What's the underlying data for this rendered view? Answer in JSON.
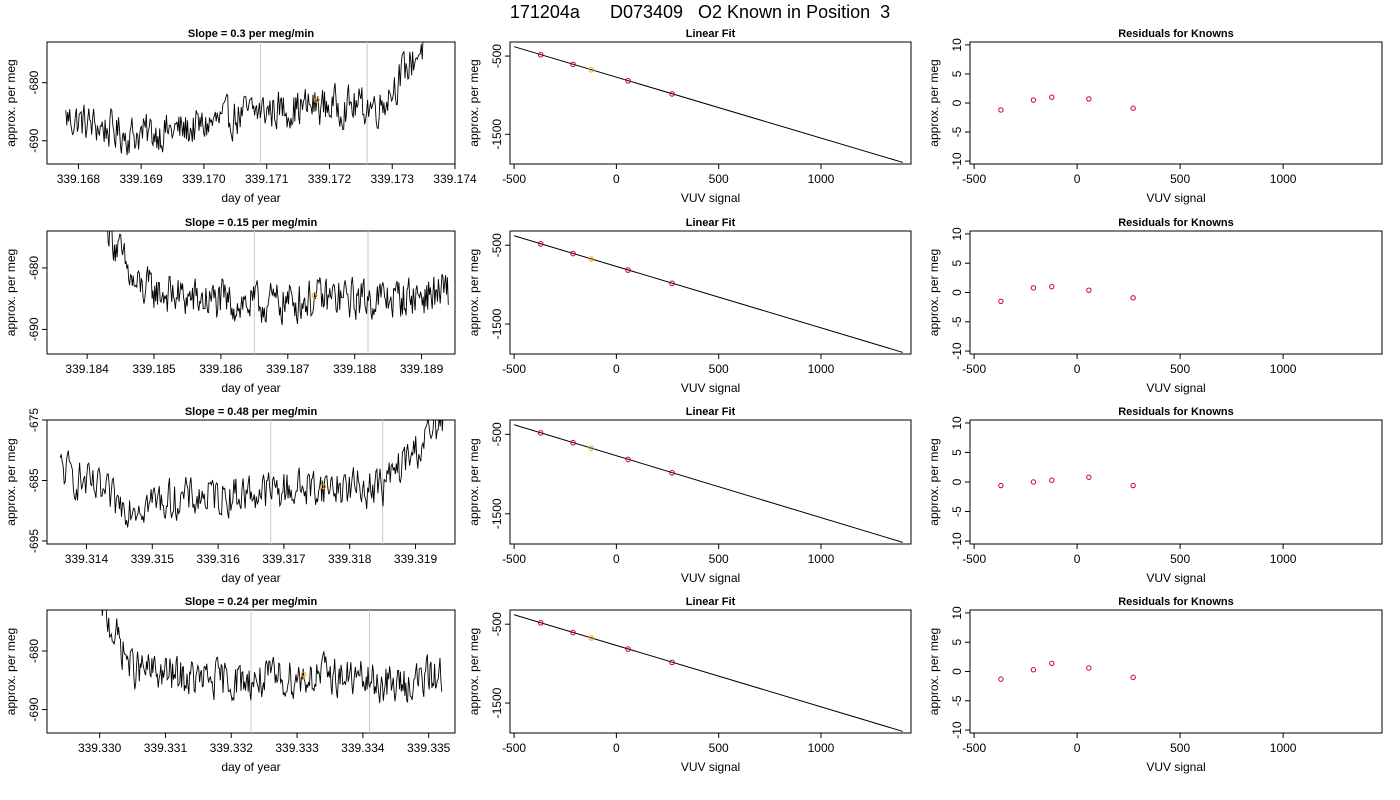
{
  "page": {
    "title": "171204a      D073409   O2 Known in Position  3"
  },
  "chart_data": [
    {
      "type": "line",
      "panel": "timeseries",
      "title": "Slope =  0.3  per meg/min",
      "xlabel": "day of year",
      "ylabel": "approx. per meg",
      "xlim": [
        339.1675,
        339.174
      ],
      "ylim": [
        -694,
        -673
      ],
      "xticks": [
        "339.168",
        "339.169",
        "339.170",
        "339.171",
        "339.172",
        "339.173",
        "339.174"
      ],
      "yticks": [
        "-680",
        "-690"
      ],
      "vlines": [
        339.1709,
        339.1726
      ],
      "highlight": {
        "x": 339.1718,
        "y": -683
      },
      "series": {
        "x": [
          339.1678,
          339.1688,
          339.1698,
          339.1708,
          339.1718,
          339.1728,
          339.1736
        ],
        "y": [
          -686,
          -689,
          -688,
          -685,
          -684,
          -684,
          -672
        ]
      }
    },
    {
      "type": "line",
      "panel": "timeseries",
      "title": "Slope =  0.15  per meg/min",
      "xlabel": "day of year",
      "ylabel": "approx. per meg",
      "xlim": [
        339.1834,
        339.1895
      ],
      "ylim": [
        -694,
        -674
      ],
      "xticks": [
        "339.184",
        "339.185",
        "339.186",
        "339.187",
        "339.188",
        "339.189"
      ],
      "yticks": [
        "-680",
        "-690"
      ],
      "vlines": [
        339.1865,
        339.1882
      ],
      "highlight": {
        "x": 339.1874,
        "y": -684.5
      },
      "series": {
        "x": [
          339.1843,
          339.1847,
          339.1855,
          339.1865,
          339.1875,
          339.1885,
          339.1894
        ],
        "y": [
          -673,
          -683,
          -685,
          -686,
          -685,
          -685,
          -684
        ]
      }
    },
    {
      "type": "line",
      "panel": "timeseries",
      "title": "Slope =  0.48  per meg/min",
      "xlabel": "day of year",
      "ylabel": "approx. per meg",
      "xlim": [
        339.3134,
        339.3196
      ],
      "ylim": [
        -695.5,
        -675
      ],
      "xticks": [
        "339.314",
        "339.315",
        "339.316",
        "339.317",
        "339.318",
        "339.319"
      ],
      "yticks": [
        "-675",
        "-685",
        "-695"
      ],
      "vlines": [
        339.3168,
        339.3185
      ],
      "highlight": {
        "x": 339.3176,
        "y": -686
      },
      "series": {
        "x": [
          339.3136,
          339.3145,
          339.3155,
          339.3165,
          339.3175,
          339.3185,
          339.3195
        ],
        "y": [
          -683,
          -689,
          -688,
          -687,
          -686,
          -686,
          -674
        ]
      }
    },
    {
      "type": "line",
      "panel": "timeseries",
      "title": "Slope =  0.24  per meg/min",
      "xlabel": "day of year",
      "ylabel": "approx. per meg",
      "xlim": [
        339.3292,
        339.3354
      ],
      "ylim": [
        -694,
        -673
      ],
      "xticks": [
        "339.330",
        "339.331",
        "339.332",
        "339.333",
        "339.334",
        "339.335"
      ],
      "yticks": [
        "-680",
        "-690"
      ],
      "vlines": [
        339.3323,
        339.3341
      ],
      "highlight": {
        "x": 339.3331,
        "y": -684
      },
      "series": {
        "x": [
          339.33,
          339.3305,
          339.3315,
          339.3325,
          339.3335,
          339.3345,
          339.3352
        ],
        "y": [
          -672,
          -683,
          -685,
          -685,
          -684,
          -686,
          -684
        ]
      }
    },
    {
      "type": "scatter",
      "panel": "fit",
      "title": "Linear Fit",
      "xlabel": "VUV signal",
      "ylabel": "approx. per meg",
      "xlim": [
        -520,
        1440
      ],
      "ylim": [
        -1880,
        -320
      ],
      "xticks": [
        -500,
        0,
        500,
        1000
      ],
      "yticks": [
        -500,
        -1500
      ],
      "line": {
        "x": [
          -500,
          1400
        ],
        "y": [
          -380,
          -1860
        ]
      },
      "points": {
        "x": [
          -370,
          -212,
          -123,
          57,
          272
        ],
        "y": [
          -483,
          -606,
          -675,
          -816,
          -984
        ]
      },
      "highlight_index": 2
    },
    {
      "type": "scatter",
      "panel": "fit",
      "title": "Linear Fit",
      "xlabel": "VUV signal",
      "ylabel": "approx. per meg",
      "xlim": [
        -520,
        1440
      ],
      "ylim": [
        -1880,
        -320
      ],
      "xticks": [
        -500,
        0,
        500,
        1000
      ],
      "yticks": [
        -500,
        -1500
      ],
      "line": {
        "x": [
          -500,
          1400
        ],
        "y": [
          -380,
          -1860
        ]
      },
      "points": {
        "x": [
          -370,
          -212,
          -123,
          57,
          272
        ],
        "y": [
          -483,
          -606,
          -675,
          -816,
          -984
        ]
      },
      "highlight_index": 2
    },
    {
      "type": "scatter",
      "panel": "fit",
      "title": "Linear Fit",
      "xlabel": "VUV signal",
      "ylabel": "approx. per meg",
      "xlim": [
        -520,
        1440
      ],
      "ylim": [
        -1880,
        -320
      ],
      "xticks": [
        -500,
        0,
        500,
        1000
      ],
      "yticks": [
        -500,
        -1500
      ],
      "line": {
        "x": [
          -500,
          1400
        ],
        "y": [
          -380,
          -1860
        ]
      },
      "points": {
        "x": [
          -370,
          -212,
          -123,
          57,
          272
        ],
        "y": [
          -483,
          -606,
          -675,
          -816,
          -984
        ]
      },
      "highlight_index": 2
    },
    {
      "type": "scatter",
      "panel": "fit",
      "title": "Linear Fit",
      "xlabel": "VUV signal",
      "ylabel": "approx. per meg",
      "xlim": [
        -520,
        1440
      ],
      "ylim": [
        -1880,
        -320
      ],
      "xticks": [
        -500,
        0,
        500,
        1000
      ],
      "yticks": [
        -500,
        -1500
      ],
      "line": {
        "x": [
          -500,
          1400
        ],
        "y": [
          -380,
          -1860
        ]
      },
      "points": {
        "x": [
          -370,
          -212,
          -123,
          57,
          272
        ],
        "y": [
          -483,
          -606,
          -675,
          -816,
          -984
        ]
      },
      "highlight_index": 2
    },
    {
      "type": "scatter",
      "panel": "residual",
      "title": "Residuals for Knowns",
      "xlabel": "VUV signal",
      "ylabel": "approx. per meg",
      "xlim": [
        -520,
        1480
      ],
      "ylim": [
        -10.5,
        10.5
      ],
      "xticks": [
        -500,
        0,
        500,
        1000
      ],
      "yticks": [
        10,
        5,
        0,
        -5,
        -10
      ],
      "points": {
        "x": [
          -370,
          -212,
          -123,
          57,
          272
        ],
        "y": [
          -1.2,
          0.5,
          1.0,
          0.7,
          -0.9
        ]
      }
    },
    {
      "type": "scatter",
      "panel": "residual",
      "title": "Residuals for Knowns",
      "xlabel": "VUV signal",
      "ylabel": "approx. per meg",
      "xlim": [
        -520,
        1480
      ],
      "ylim": [
        -10.5,
        10.5
      ],
      "xticks": [
        -500,
        0,
        500,
        1000
      ],
      "yticks": [
        10,
        5,
        0,
        -5,
        -10
      ],
      "points": {
        "x": [
          -370,
          -212,
          -123,
          57,
          272
        ],
        "y": [
          -1.5,
          0.8,
          1.0,
          0.4,
          -0.9
        ]
      }
    },
    {
      "type": "scatter",
      "panel": "residual",
      "title": "Residuals for Knowns",
      "xlabel": "VUV signal",
      "ylabel": "approx. per meg",
      "xlim": [
        -520,
        1480
      ],
      "ylim": [
        -10.5,
        10.5
      ],
      "xticks": [
        -500,
        0,
        500,
        1000
      ],
      "yticks": [
        10,
        5,
        0,
        -5,
        -10
      ],
      "points": {
        "x": [
          -370,
          -212,
          -123,
          57,
          272
        ],
        "y": [
          -0.6,
          0.0,
          0.3,
          0.8,
          -0.6
        ]
      }
    },
    {
      "type": "scatter",
      "panel": "residual",
      "title": "Residuals for Knowns",
      "xlabel": "VUV signal",
      "ylabel": "approx. per meg",
      "xlim": [
        -520,
        1480
      ],
      "ylim": [
        -10.5,
        10.5
      ],
      "xticks": [
        -500,
        0,
        500,
        1000
      ],
      "yticks": [
        10,
        5,
        0,
        -5,
        -10
      ],
      "points": {
        "x": [
          -370,
          -212,
          -123,
          57,
          272
        ],
        "y": [
          -1.3,
          0.3,
          1.4,
          0.6,
          -1.0
        ]
      }
    }
  ]
}
